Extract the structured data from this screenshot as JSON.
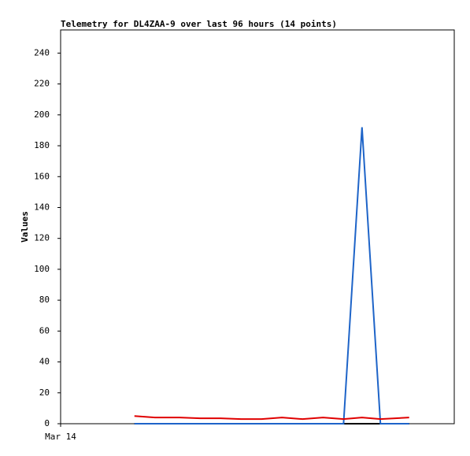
{
  "chart_data": {
    "type": "line",
    "title": "Telemetry for DL4ZAA-9 over last 96 hours (14 points)",
    "y_label": "Values",
    "xlim": [
      0,
      96
    ],
    "xticks": [
      {
        "value": 0,
        "label": "Mar 14"
      }
    ],
    "ylim": [
      0,
      255
    ],
    "yticks": [
      0,
      20,
      40,
      60,
      80,
      100,
      120,
      140,
      160,
      180,
      200,
      220,
      240
    ],
    "x": [
      18,
      23,
      29,
      34,
      39,
      44,
      49,
      54,
      59,
      64,
      69,
      73.5,
      78,
      85
    ],
    "series": [
      {
        "color": "#000000",
        "values": [
          0,
          0,
          0,
          0,
          0,
          0,
          0,
          0,
          0,
          0,
          0,
          0,
          0,
          0
        ]
      },
      {
        "color": "#1e64c8",
        "values": [
          0,
          0,
          0,
          0,
          0,
          0,
          0,
          0,
          0,
          0,
          0,
          192,
          0,
          0
        ]
      },
      {
        "color": "#e00000",
        "values": [
          5,
          4,
          4,
          3.5,
          3.5,
          3,
          3,
          4,
          3,
          4,
          3,
          4,
          3,
          4
        ]
      }
    ]
  }
}
